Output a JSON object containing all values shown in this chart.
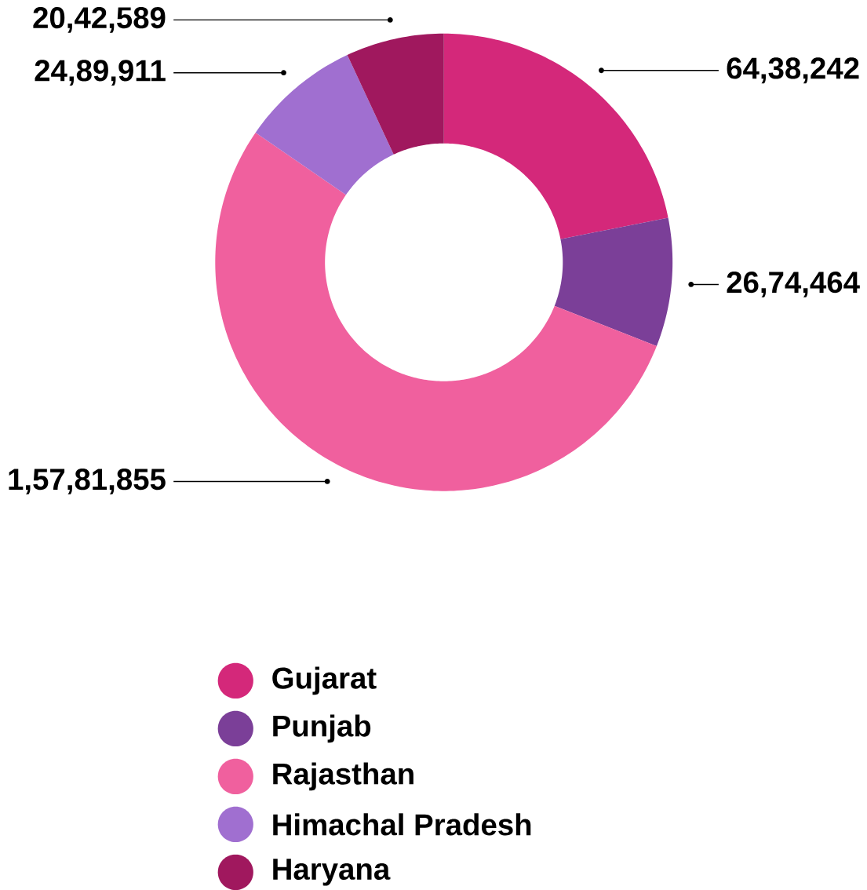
{
  "chart_data": {
    "type": "donut",
    "categories": [
      "Gujarat",
      "Punjab",
      "Rajasthan",
      "Himachal Pradesh",
      "Haryana"
    ],
    "values": [
      6438242,
      2674464,
      15781855,
      2489911,
      2042589
    ],
    "value_labels": [
      "64,38,242",
      "26,74,464",
      "1,57,81,855",
      "24,89,911",
      "20,42,589"
    ],
    "colors": [
      "#d4287a",
      "#7b3f98",
      "#f0609e",
      "#a06fd0",
      "#a0185e"
    ],
    "legend": "bottom"
  }
}
